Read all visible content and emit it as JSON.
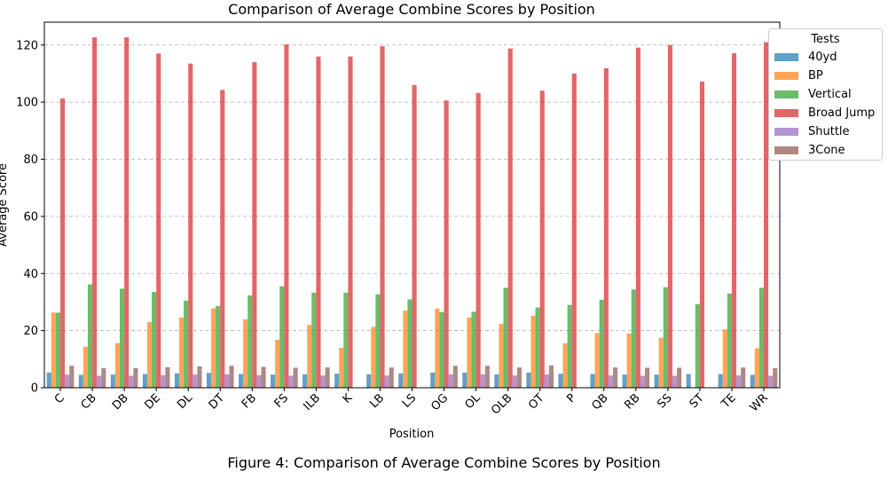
{
  "figure_caption": "Figure 4: Comparison of Average Combine Scores by Position",
  "chart_data": {
    "type": "bar",
    "title": "Comparison of Average Combine Scores by Position",
    "xlabel": "Position",
    "ylabel": "Average Score",
    "ylim": [
      0,
      128
    ],
    "yticks": [
      0,
      20,
      40,
      60,
      80,
      100,
      120
    ],
    "grid": "y-dashed",
    "legend_title": "Tests",
    "legend_placement": "top-right outside",
    "categories": [
      "C",
      "CB",
      "DB",
      "DE",
      "DL",
      "DT",
      "FB",
      "FS",
      "ILB",
      "K",
      "LB",
      "LS",
      "OG",
      "OL",
      "OLB",
      "OT",
      "P",
      "QB",
      "RB",
      "SS",
      "ST",
      "TE",
      "WR"
    ],
    "series": [
      {
        "name": "40yd",
        "color": "#1f77b4",
        "values": [
          5.3,
          4.5,
          4.6,
          4.8,
          5.0,
          5.2,
          4.8,
          4.6,
          4.7,
          4.9,
          4.7,
          5.0,
          5.3,
          5.3,
          4.7,
          5.3,
          4.9,
          4.8,
          4.6,
          4.6,
          4.8,
          4.8,
          4.5
        ]
      },
      {
        "name": "BP",
        "color": "#ff7f0e",
        "values": [
          26.3,
          14.4,
          15.6,
          23.0,
          24.6,
          27.8,
          24.0,
          16.8,
          22.0,
          14.0,
          21.3,
          27.0,
          27.7,
          24.6,
          22.4,
          25.2,
          15.6,
          19.1,
          19.0,
          17.5,
          0,
          20.4,
          13.8
        ]
      },
      {
        "name": "Vertical",
        "color": "#2ca02c",
        "values": [
          26.3,
          36.2,
          34.7,
          33.5,
          30.5,
          28.6,
          32.3,
          35.5,
          33.3,
          33.3,
          32.7,
          30.9,
          26.5,
          26.6,
          35.0,
          28.1,
          29.0,
          30.8,
          34.4,
          35.2,
          29.3,
          33.0,
          35.0
        ]
      },
      {
        "name": "Broad Jump",
        "color": "#d62728",
        "values": [
          101.3,
          122.7,
          122.7,
          117.0,
          113.5,
          104.3,
          114.0,
          120.2,
          116.0,
          116.0,
          119.6,
          106.0,
          100.6,
          103.2,
          118.8,
          104.0,
          110.0,
          111.9,
          119.1,
          120.0,
          107.2,
          117.1,
          121.0
        ]
      },
      {
        "name": "Shuttle",
        "color": "#9467bd",
        "values": [
          4.6,
          4.2,
          4.2,
          4.4,
          4.6,
          4.7,
          4.4,
          4.2,
          4.3,
          0,
          4.3,
          0,
          4.7,
          4.7,
          4.3,
          4.7,
          0,
          4.3,
          4.2,
          4.2,
          0,
          4.3,
          4.2
        ]
      },
      {
        "name": "3Cone",
        "color": "#8c564b",
        "values": [
          7.7,
          6.9,
          6.9,
          7.2,
          7.5,
          7.7,
          7.3,
          7.0,
          7.1,
          0,
          7.1,
          0,
          7.7,
          7.7,
          7.1,
          7.8,
          0,
          7.1,
          7.0,
          7.0,
          0,
          7.1,
          6.9
        ]
      }
    ]
  }
}
